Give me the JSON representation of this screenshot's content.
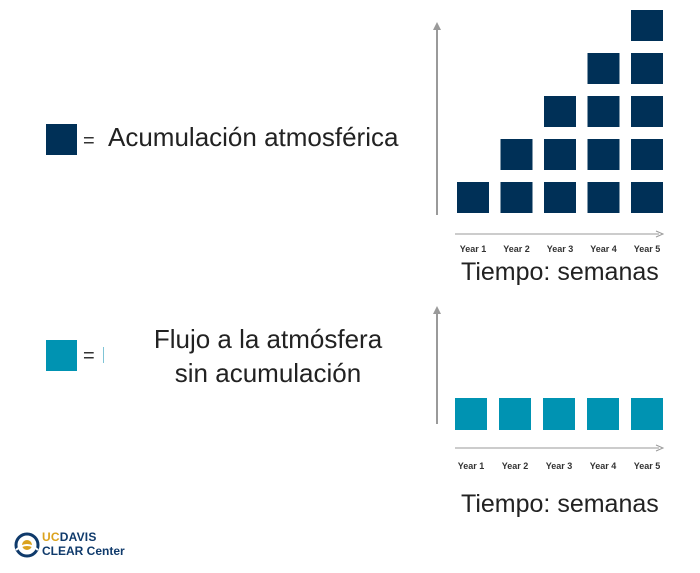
{
  "colors": {
    "accumulation": "#003057",
    "flow": "#0093b2",
    "axis": "#9a9a9a"
  },
  "legend": {
    "equals": "=",
    "accumulation_label": "Acumulación atmosférica",
    "flow_label_line1": "Flujo a la atmósfera",
    "flow_label_line2": "sin acumulación"
  },
  "chart_data": [
    {
      "type": "bar",
      "title": "",
      "categories": [
        "Year 1",
        "Year 2",
        "Year 3",
        "Year 4",
        "Year 5"
      ],
      "values": [
        1,
        2,
        3,
        4,
        5
      ],
      "xlabel": "Tiempo: semanas",
      "ylabel": "",
      "ylim": [
        0,
        5
      ],
      "grid": false
    },
    {
      "type": "bar",
      "title": "",
      "categories": [
        "Year 1",
        "Year 2",
        "Year 3",
        "Year 4",
        "Year 5"
      ],
      "values": [
        1,
        1,
        1,
        1,
        1
      ],
      "xlabel": "Tiempo: semanas",
      "ylabel": "",
      "ylim": [
        0,
        5
      ],
      "grid": false
    }
  ],
  "logo": {
    "uc": "UC",
    "davis": "DAVIS",
    "center": "CLEAR Center"
  }
}
